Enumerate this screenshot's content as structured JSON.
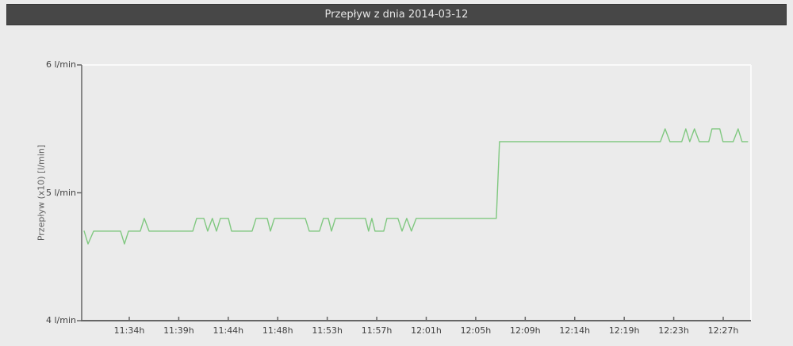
{
  "header": {
    "title": "Przepływ z dnia 2014-03-12"
  },
  "colors": {
    "page_bg": "#ebebeb",
    "header_bg": "#474747",
    "header_text": "#e6e6e6",
    "axis": "#666666",
    "plot_border_light": "#fafafa",
    "tick_text": "#3f3f3f",
    "series_green": "#80c880"
  },
  "chart_data": {
    "type": "line",
    "title": "Przepływ z dnia 2014-03-12",
    "xlabel": "",
    "ylabel": "Przepływ (x10) [l/min]",
    "ylim": [
      4,
      6
    ],
    "grid": "off",
    "legend": "none",
    "y_ticks": [
      {
        "value": 6,
        "label": "6 l/min"
      },
      {
        "value": 5,
        "label": "5 l/min"
      },
      {
        "value": 4,
        "label": "4 l/min"
      }
    ],
    "x_ticks": [
      "11:34h",
      "11:39h",
      "11:44h",
      "11:48h",
      "11:53h",
      "11:57h",
      "12:01h",
      "12:05h",
      "12:09h",
      "12:14h",
      "12:19h",
      "12:23h",
      "12:27h"
    ],
    "x_domain": [
      "11:29:45",
      "12:29:30"
    ],
    "series": [
      {
        "name": "Przepływ",
        "color": "#80c880",
        "points": [
          [
            "11:29:58",
            4.7
          ],
          [
            "11:30:19",
            4.6
          ],
          [
            "11:30:49",
            4.7
          ],
          [
            "11:33:13",
            4.7
          ],
          [
            "11:33:34",
            4.6
          ],
          [
            "11:33:56",
            4.7
          ],
          [
            "11:34:59",
            4.7
          ],
          [
            "11:35:20",
            4.8
          ],
          [
            "11:35:46",
            4.7
          ],
          [
            "11:39:40",
            4.7
          ],
          [
            "11:40:01",
            4.8
          ],
          [
            "11:40:39",
            4.8
          ],
          [
            "11:41:00",
            4.7
          ],
          [
            "11:41:25",
            4.8
          ],
          [
            "11:41:47",
            4.7
          ],
          [
            "11:42:08",
            4.8
          ],
          [
            "11:42:51",
            4.8
          ],
          [
            "11:43:08",
            4.7
          ],
          [
            "11:44:58",
            4.7
          ],
          [
            "11:45:19",
            4.8
          ],
          [
            "11:46:19",
            4.8
          ],
          [
            "11:46:36",
            4.7
          ],
          [
            "11:46:57",
            4.8
          ],
          [
            "11:49:43",
            4.8
          ],
          [
            "11:50:04",
            4.7
          ],
          [
            "11:50:59",
            4.7
          ],
          [
            "11:51:20",
            4.8
          ],
          [
            "11:51:46",
            4.8
          ],
          [
            "11:52:03",
            4.7
          ],
          [
            "11:52:24",
            4.8
          ],
          [
            "11:54:39",
            4.8
          ],
          [
            "11:55:05",
            4.8
          ],
          [
            "11:55:22",
            4.7
          ],
          [
            "11:55:39",
            4.8
          ],
          [
            "11:55:56",
            4.7
          ],
          [
            "11:56:43",
            4.7
          ],
          [
            "11:57:00",
            4.8
          ],
          [
            "11:57:59",
            4.8
          ],
          [
            "11:58:21",
            4.7
          ],
          [
            "11:58:46",
            4.8
          ],
          [
            "11:59:11",
            4.7
          ],
          [
            "11:59:37",
            4.8
          ],
          [
            "12:06:46",
            4.8
          ],
          [
            "12:07:03",
            5.4
          ],
          [
            "12:21:25",
            5.4
          ],
          [
            "12:21:50",
            5.5
          ],
          [
            "12:22:16",
            5.4
          ],
          [
            "12:23:19",
            5.4
          ],
          [
            "12:23:41",
            5.5
          ],
          [
            "12:24:02",
            5.4
          ],
          [
            "12:24:27",
            5.5
          ],
          [
            "12:24:53",
            5.4
          ],
          [
            "12:25:44",
            5.4
          ],
          [
            "12:26:01",
            5.5
          ],
          [
            "12:26:43",
            5.5
          ],
          [
            "12:27:00",
            5.4
          ],
          [
            "12:27:55",
            5.4
          ],
          [
            "12:28:21",
            5.5
          ],
          [
            "12:28:42",
            5.4
          ],
          [
            "12:29:12",
            5.4
          ]
        ]
      }
    ]
  }
}
